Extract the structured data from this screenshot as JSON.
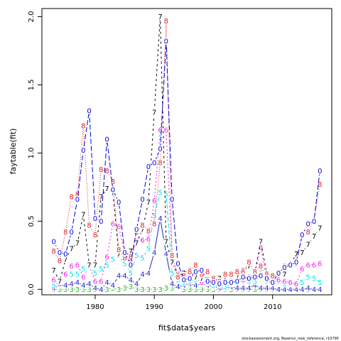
{
  "chart_data": {
    "type": "line",
    "xlabel": "fit$data$years",
    "ylabel": "faytable(fit)",
    "footer": "stockassessment.org, Baserun_new_reference, r10795",
    "xlim": [
      1971,
      2020
    ],
    "ylim": [
      -0.04,
      2.06
    ],
    "xticks": [
      1980,
      1990,
      2000,
      2010
    ],
    "yticks": [
      0.0,
      0.5,
      1.0,
      1.5,
      2.0
    ],
    "ytick_labels": [
      "0.0",
      "0.5",
      "1.0",
      "1.5",
      "2.0"
    ],
    "x": [
      1973,
      1974,
      1975,
      1976,
      1977,
      1978,
      1979,
      1980,
      1981,
      1982,
      1983,
      1984,
      1985,
      1986,
      1987,
      1988,
      1989,
      1990,
      1991,
      1992,
      1993,
      1994,
      1995,
      1996,
      1997,
      1998,
      1999,
      2000,
      2001,
      2002,
      2003,
      2004,
      2005,
      2006,
      2007,
      2008,
      2009,
      2010,
      2011,
      2012,
      2013,
      2014,
      2015,
      2016,
      2017,
      2018
    ],
    "series": [
      {
        "name": "3",
        "color": "#22bb22",
        "dash": "none",
        "values": [
          0.0,
          0.0,
          0.0,
          0.0,
          0.0,
          0.0,
          0.0,
          0.0,
          0.0,
          0.0,
          0.01,
          0.0,
          0.01,
          0.02,
          0.0,
          0.0,
          0.0,
          0.0,
          0.0,
          0.01,
          0.01,
          0.02,
          0.0,
          0.0,
          0.0,
          0.0,
          0.0,
          0.0,
          0.0,
          0.0,
          0.0,
          0.0,
          0.0,
          0.0,
          0.0,
          0.0,
          0.0,
          0.0,
          0.0,
          0.0,
          0.0,
          0.0,
          0.0,
          0.0,
          0.0,
          0.0
        ]
      },
      {
        "name": "4",
        "color": "#2222cc",
        "dash": "none",
        "values": [
          0.01,
          0.03,
          0.03,
          0.04,
          0.05,
          0.03,
          0.04,
          0.01,
          0.0,
          0.05,
          0.03,
          0.1,
          0.1,
          0.07,
          0.04,
          0.11,
          0.12,
          0.27,
          0.52,
          0.26,
          0.04,
          0.02,
          0.03,
          0.04,
          0.03,
          0.04,
          0.03,
          0.02,
          0.01,
          0.01,
          0.02,
          0.01,
          0.01,
          0.01,
          0.03,
          0.01,
          0.01,
          0.01,
          0.0,
          0.0,
          0.0,
          0.0,
          0.0,
          0.01,
          0.0,
          0.0
        ]
      },
      {
        "name": "5",
        "color": "#00e5e5",
        "dash": "6,3",
        "values": [
          0.03,
          0.05,
          0.1,
          0.11,
          0.11,
          0.15,
          0.16,
          0.12,
          0.15,
          0.18,
          0.22,
          0.25,
          0.19,
          0.12,
          0.25,
          0.23,
          0.3,
          0.54,
          0.71,
          0.7,
          0.12,
          0.07,
          0.05,
          0.06,
          0.07,
          0.06,
          0.05,
          0.03,
          0.03,
          0.02,
          0.04,
          0.06,
          0.06,
          0.06,
          0.06,
          0.15,
          0.06,
          0.05,
          0.06,
          0.04,
          0.04,
          0.04,
          0.05,
          0.09,
          0.08,
          0.05
        ]
      },
      {
        "name": "6",
        "color": "#ee22ee",
        "dash": "2,3",
        "values": [
          0.07,
          0.04,
          0.11,
          0.17,
          0.18,
          0.09,
          0.17,
          0.06,
          0.06,
          0.24,
          0.48,
          0.46,
          0.26,
          0.21,
          0.35,
          0.36,
          0.37,
          0.65,
          1.17,
          1.17,
          0.23,
          0.11,
          0.09,
          0.1,
          0.09,
          0.05,
          0.05,
          0.05,
          0.06,
          0.07,
          0.04,
          0.06,
          0.07,
          0.09,
          0.11,
          0.31,
          0.07,
          0.08,
          0.07,
          0.06,
          0.05,
          0.04,
          0.15,
          0.18,
          0.18,
          0.19
        ]
      },
      {
        "name": "7",
        "color": "#000000",
        "dash": "3,4",
        "values": [
          0.14,
          0.06,
          0.22,
          0.3,
          0.34,
          0.55,
          0.18,
          0.18,
          0.68,
          0.74,
          0.71,
          0.26,
          0.24,
          0.28,
          0.34,
          0.44,
          0.64,
          1.3,
          2.0,
          0.35,
          0.2,
          0.1,
          0.12,
          0.14,
          0.09,
          0.08,
          0.07,
          0.06,
          0.08,
          0.09,
          0.1,
          0.09,
          0.14,
          0.17,
          0.13,
          0.35,
          0.12,
          0.08,
          0.12,
          0.11,
          0.18,
          0.26,
          0.27,
          0.33,
          0.39,
          0.45
        ]
      },
      {
        "name": "8",
        "color": "#dd2222",
        "dash": "1,2",
        "values": [
          0.28,
          0.21,
          0.42,
          0.68,
          0.7,
          1.2,
          0.47,
          0.4,
          0.88,
          0.87,
          0.79,
          0.29,
          0.23,
          0.24,
          0.42,
          0.47,
          0.43,
          0.48,
          0.93,
          1.97,
          0.25,
          0.09,
          0.1,
          0.13,
          0.18,
          0.11,
          0.13,
          0.08,
          0.06,
          0.11,
          0.11,
          0.13,
          0.13,
          0.2,
          0.13,
          0.17,
          0.11,
          0.1,
          0.12,
          0.17,
          0.19,
          0.19,
          0.4,
          0.42,
          0.51,
          0.77
        ]
      },
      {
        "name": "0",
        "color": "#0000dd",
        "dash": "7,3",
        "values": [
          0.35,
          0.27,
          0.26,
          0.42,
          0.66,
          1.02,
          1.31,
          0.52,
          0.5,
          1.1,
          0.73,
          0.64,
          0.27,
          0.18,
          0.44,
          0.66,
          0.9,
          0.93,
          1.03,
          1.82,
          0.66,
          0.19,
          0.07,
          0.08,
          0.13,
          0.14,
          0.06,
          0.05,
          0.04,
          0.05,
          0.05,
          0.06,
          0.09,
          0.08,
          0.09,
          0.1,
          0.08,
          0.05,
          0.12,
          0.16,
          0.18,
          0.2,
          0.4,
          0.48,
          0.5,
          0.87
        ]
      }
    ]
  }
}
